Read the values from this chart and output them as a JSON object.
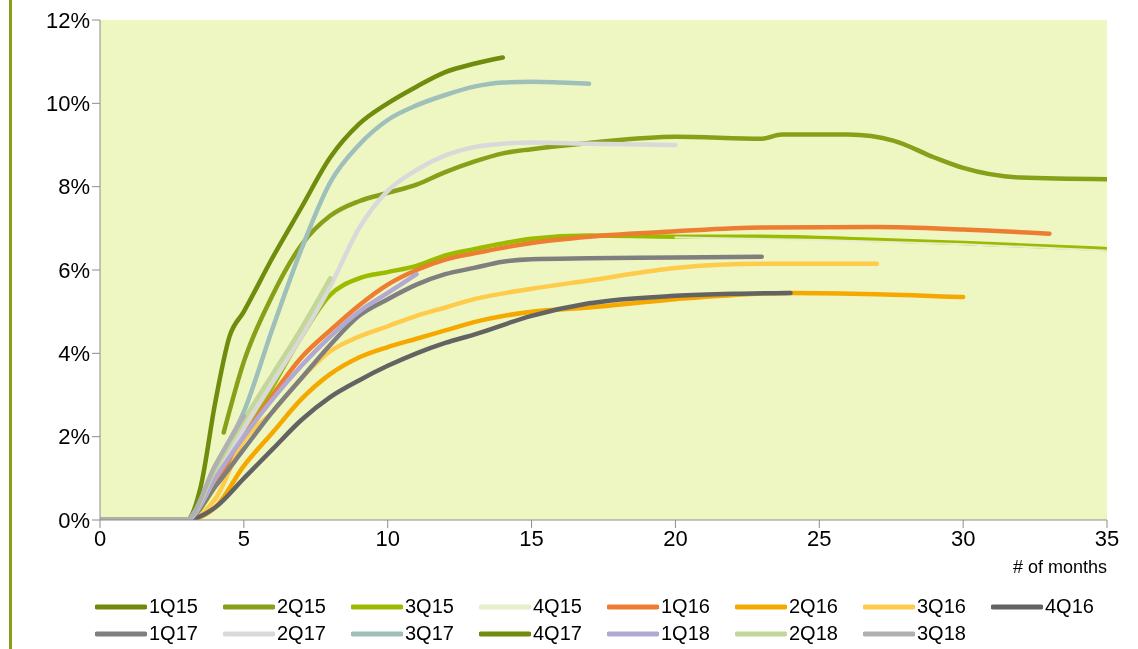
{
  "chart_data": {
    "type": "line",
    "xlabel": "# of months",
    "xlim": [
      0,
      35
    ],
    "xticks": [
      0,
      5,
      10,
      15,
      20,
      25,
      30,
      35
    ],
    "ylim": [
      0,
      12
    ],
    "yticks": [
      {
        "value": 0,
        "label": "0%"
      },
      {
        "value": 2,
        "label": "2%"
      },
      {
        "value": 4,
        "label": "4%"
      },
      {
        "value": 6,
        "label": "6%"
      },
      {
        "value": 8,
        "label": "8%"
      },
      {
        "value": 10,
        "label": "10%"
      },
      {
        "value": 12,
        "label": "12%"
      }
    ],
    "grid": false,
    "legend": "bottom",
    "marker": "none",
    "line_style": "solid",
    "series": [
      {
        "name": "1Q15",
        "color": "#6f8a0a"
      },
      {
        "name": "2Q15",
        "color": "#86a01a",
        "x": [
          4.3,
          5,
          6,
          7,
          8,
          9,
          10,
          11,
          12,
          13,
          14,
          15,
          17,
          20,
          23,
          23.7,
          26,
          27.6,
          29,
          30,
          32,
          35
        ],
        "values": [
          2.1,
          3.8,
          5.4,
          6.6,
          7.3,
          7.65,
          7.85,
          8.05,
          8.35,
          8.6,
          8.8,
          8.9,
          9.05,
          9.2,
          9.15,
          9.25,
          9.25,
          9.1,
          8.7,
          8.45,
          8.22,
          8.18
        ]
      },
      {
        "name": "3Q15",
        "color": "#9bbb00",
        "x": [
          0,
          3,
          4,
          5,
          6,
          7,
          8,
          9,
          10,
          11,
          12,
          13,
          15,
          17,
          20,
          23,
          27,
          30,
          35
        ],
        "values": [
          0,
          0,
          0.8,
          2.0,
          3.2,
          4.4,
          5.4,
          5.8,
          5.95,
          6.1,
          6.35,
          6.5,
          6.75,
          6.83,
          6.8,
          6.8,
          6.72,
          6.65,
          6.5
        ]
      },
      {
        "name": "4Q15",
        "color": "#e6efcc",
        "x": [
          20,
          25,
          30,
          35
        ],
        "values": [
          6.78,
          6.72,
          6.62,
          6.46
        ]
      },
      {
        "name": "1Q16",
        "color": "#ed7d31",
        "x": [
          0,
          3,
          4,
          5,
          6,
          7,
          8,
          9,
          10,
          11,
          12,
          13,
          15,
          17,
          20,
          23,
          27,
          30,
          33
        ],
        "values": [
          0,
          0,
          0.9,
          2.0,
          3.0,
          3.9,
          4.55,
          5.15,
          5.65,
          6.0,
          6.25,
          6.4,
          6.65,
          6.8,
          6.93,
          7.02,
          7.03,
          6.97,
          6.87
        ]
      },
      {
        "name": "2Q16",
        "color": "#f5a800",
        "x": [
          0,
          3,
          4,
          5,
          6,
          7,
          8,
          9,
          10,
          11,
          12,
          13,
          15,
          17,
          20,
          24,
          27,
          30
        ],
        "values": [
          0,
          0,
          0.3,
          1.3,
          2.1,
          2.9,
          3.5,
          3.9,
          4.15,
          4.35,
          4.55,
          4.75,
          5.0,
          5.1,
          5.3,
          5.45,
          5.42,
          5.35
        ]
      },
      {
        "name": "3Q16",
        "color": "#fecb4a",
        "x": [
          0,
          3,
          4,
          5,
          6,
          7,
          8,
          9,
          10,
          11,
          12,
          13,
          15,
          17,
          20,
          23,
          27
        ],
        "values": [
          0,
          0,
          0.5,
          1.9,
          2.6,
          3.4,
          4.05,
          4.4,
          4.65,
          4.9,
          5.1,
          5.3,
          5.55,
          5.75,
          6.05,
          6.15,
          6.15
        ]
      },
      {
        "name": "4Q16",
        "color": "#636363",
        "x": [
          0,
          3,
          4,
          5,
          6,
          7,
          8,
          9,
          10,
          11,
          12,
          13,
          15,
          17,
          20,
          22,
          24
        ],
        "values": [
          0,
          0,
          0.3,
          1.0,
          1.7,
          2.4,
          2.95,
          3.35,
          3.7,
          4.0,
          4.25,
          4.45,
          4.9,
          5.2,
          5.38,
          5.43,
          5.45
        ]
      },
      {
        "name": "1Q17",
        "color": "#7f7f7f",
        "x": [
          0,
          3,
          4,
          5,
          6,
          7,
          8,
          9,
          10,
          11,
          12,
          13,
          14,
          15,
          17,
          20,
          23
        ],
        "values": [
          0,
          0,
          0.8,
          1.7,
          2.6,
          3.4,
          4.2,
          4.9,
          5.3,
          5.65,
          5.9,
          6.05,
          6.2,
          6.26,
          6.28,
          6.3,
          6.32
        ]
      },
      {
        "name": "2Q17",
        "color": "#d9d9d9",
        "x": [
          0,
          3,
          4,
          5,
          6,
          7,
          8,
          9,
          10,
          11,
          12,
          13,
          14,
          15,
          17,
          20
        ],
        "values": [
          0,
          0,
          1.0,
          2.2,
          3.3,
          4.4,
          5.6,
          7.0,
          7.9,
          8.4,
          8.75,
          8.95,
          9.03,
          9.06,
          9.03,
          9.0
        ]
      },
      {
        "name": "3Q17",
        "color": "#9fbfba",
        "x": [
          0,
          3,
          4,
          5,
          6,
          7,
          8,
          9,
          10,
          11,
          12,
          13,
          14,
          15,
          16,
          17
        ],
        "values": [
          0,
          0,
          1.3,
          2.6,
          4.6,
          6.5,
          8.1,
          9.0,
          9.6,
          9.95,
          10.2,
          10.4,
          10.5,
          10.52,
          10.5,
          10.47
        ]
      },
      {
        "name": "4Q17",
        "color": "#708c0c",
        "x": [
          0,
          3,
          3.5,
          4,
          4.5,
          5,
          6,
          7,
          8,
          9,
          10,
          11,
          12,
          13,
          14
        ],
        "values": [
          0,
          0,
          0.8,
          2.8,
          4.4,
          5.0,
          6.3,
          7.5,
          8.7,
          9.5,
          10.0,
          10.4,
          10.75,
          10.95,
          11.1
        ]
      },
      {
        "name": "1Q18",
        "color": "#b1a9d1",
        "x": [
          0,
          3,
          4,
          5,
          6,
          7,
          8,
          9,
          10,
          11
        ],
        "values": [
          0,
          0,
          1.0,
          2.0,
          2.9,
          3.7,
          4.4,
          5.0,
          5.45,
          5.9
        ]
      },
      {
        "name": "2Q18",
        "color": "#c4d79b",
        "x": [
          0,
          3,
          4,
          5,
          6,
          7,
          8
        ],
        "values": [
          0,
          0,
          1.2,
          2.4,
          3.5,
          4.6,
          5.8
        ]
      },
      {
        "name": "3Q18",
        "color": "#b0b0b0",
        "x": [
          0,
          3,
          4,
          5
        ],
        "values": [
          0,
          0,
          1.3,
          2.5
        ]
      }
    ]
  }
}
